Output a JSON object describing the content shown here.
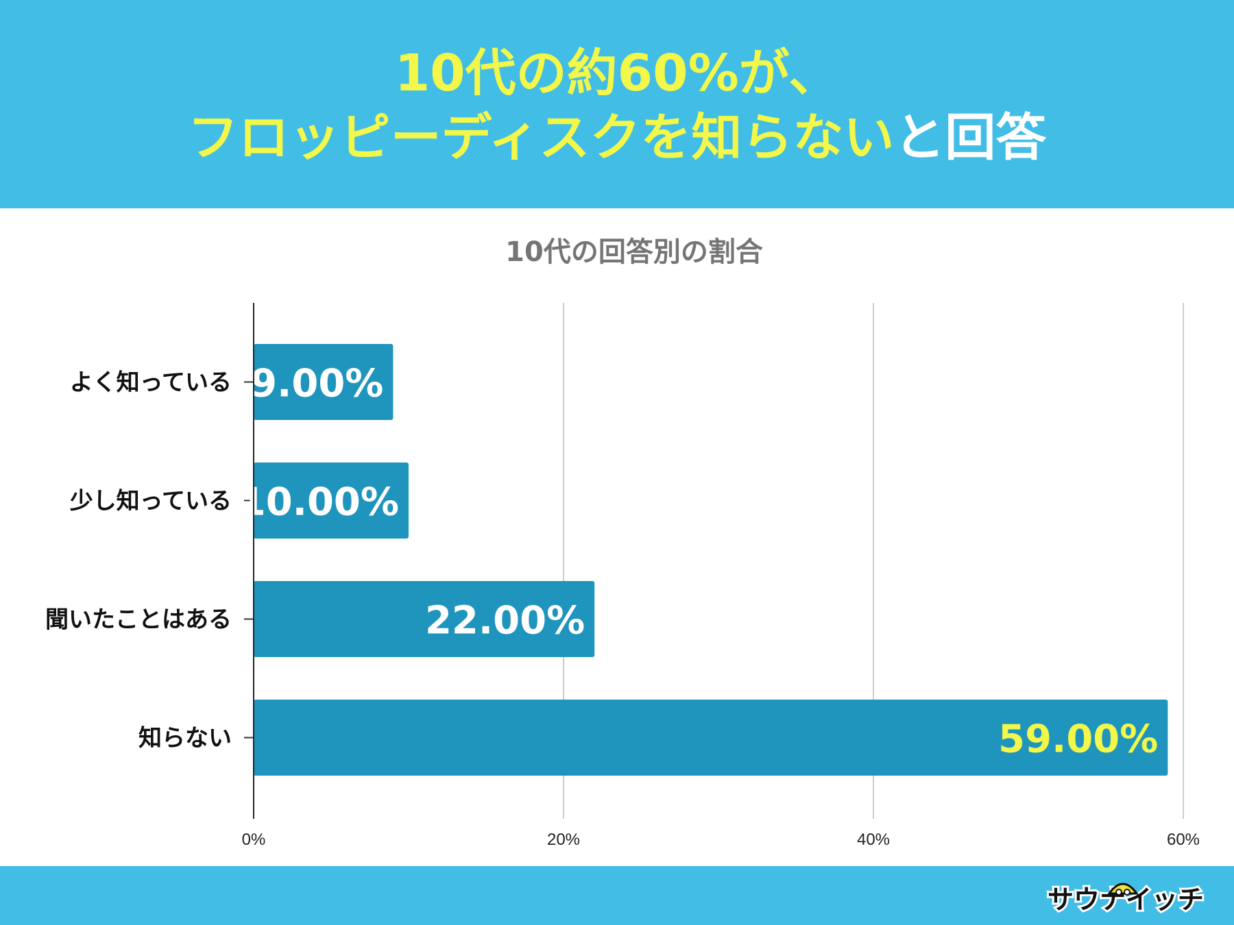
{
  "headline": {
    "line1": {
      "text": "10代の約60%が、",
      "color": "#f2f74a"
    },
    "line2": [
      {
        "text": "フロッピーディスクを知らない",
        "color": "#f2f74a"
      },
      {
        "text": "と回答",
        "color": "#ffffff"
      }
    ]
  },
  "chart_data": {
    "type": "bar",
    "orientation": "horizontal",
    "title": "10代の回答別の割合",
    "categories": [
      "よく知っている",
      "少し知っている",
      "聞いたことはある",
      "知らない"
    ],
    "values": [
      9,
      10,
      22,
      59
    ],
    "value_labels": [
      "9.00%",
      "10.00%",
      "22.00%",
      "59.00%"
    ],
    "value_label_colors": [
      "#ffffff",
      "#ffffff",
      "#ffffff",
      "#f2f74a"
    ],
    "x_ticks": [
      0,
      20,
      40,
      60
    ],
    "x_tick_labels": [
      "0%",
      "20%",
      "40%",
      "60%"
    ],
    "xlim": [
      0,
      60
    ],
    "xlabel": "",
    "ylabel": "",
    "grid": "vertical",
    "legend": "none",
    "bar_color": "#1f95bd"
  },
  "colors": {
    "header_bg": "#41bde6",
    "footer_bg": "#41bde6",
    "accent_yellow": "#f2f74a"
  },
  "logo": {
    "text": "サウナイッチ",
    "icon": "sauna-hat-mascot-icon"
  }
}
